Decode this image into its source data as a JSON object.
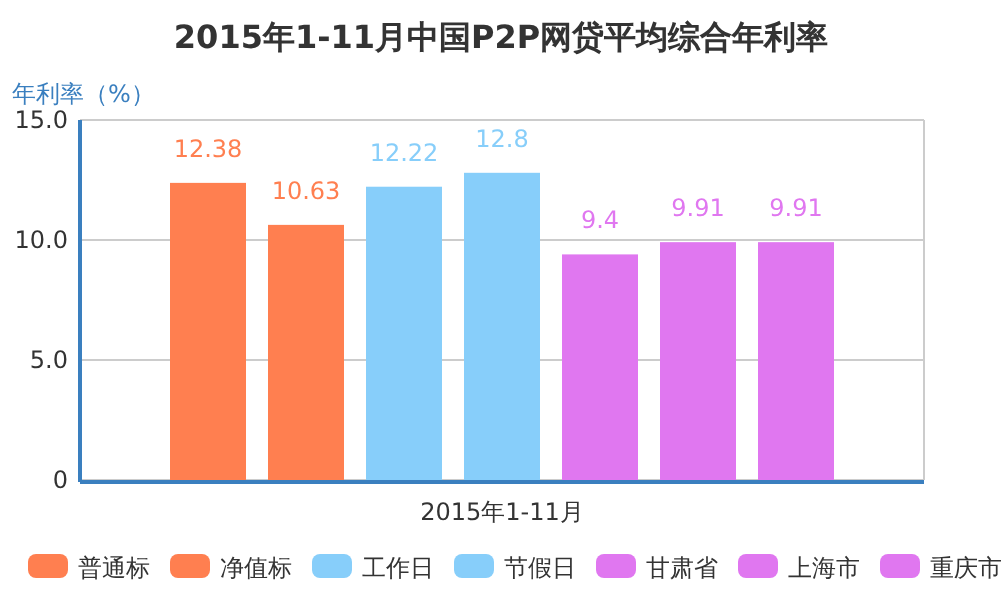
{
  "chart_data": {
    "type": "bar",
    "title": "2015年1-11月中国P2P网贷平均综合年利率",
    "ylabel": "年利率（%）",
    "categories": [
      "2015年1-11月"
    ],
    "series": [
      {
        "name": "普通标",
        "color": "#ff7f50",
        "values": [
          12.38
        ]
      },
      {
        "name": "净值标",
        "color": "#ff7f50",
        "values": [
          10.63
        ]
      },
      {
        "name": "工作日",
        "color": "#87cefa",
        "values": [
          12.22
        ]
      },
      {
        "name": "节假日",
        "color": "#87cefa",
        "values": [
          12.8
        ]
      },
      {
        "name": "甘肃省",
        "color": "#e077f0",
        "values": [
          9.4
        ]
      },
      {
        "name": "上海市",
        "color": "#e077f0",
        "values": [
          9.91
        ]
      },
      {
        "name": "重庆市",
        "color": "#e077f0",
        "values": [
          9.91
        ]
      }
    ],
    "ylim": [
      0,
      15
    ],
    "yticks": [
      0,
      {
        "value": 5,
        "label": "5.0"
      },
      {
        "value": 10,
        "label": "10.0"
      },
      {
        "value": 15,
        "label": "15.0"
      }
    ],
    "grid": "y",
    "legend": "bottom",
    "data_labels": true
  }
}
